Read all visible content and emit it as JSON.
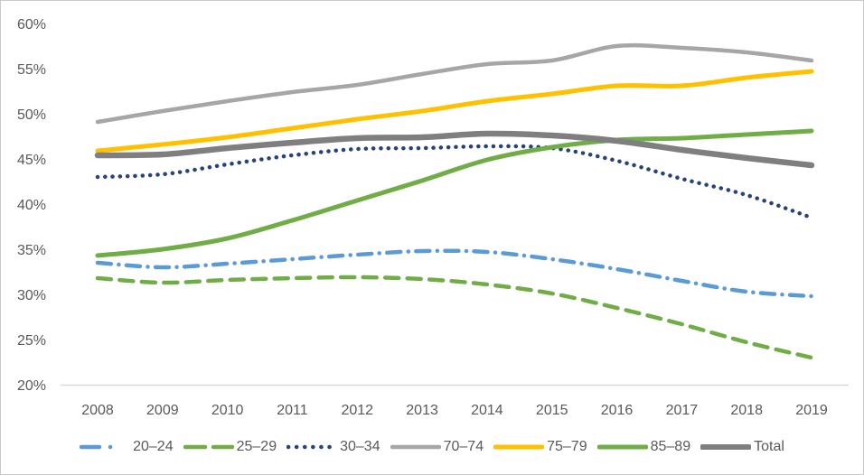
{
  "frame": {
    "background_color": "#FFFFFF",
    "border_color": "#C9C9C9",
    "axis_line_color": "#D9D9D9",
    "axis_text_color": "#595959"
  },
  "chart_data": {
    "type": "line",
    "title": "",
    "xlabel": "",
    "ylabel": "",
    "grid": false,
    "legend_position": "bottom",
    "smooth_lines": true,
    "ylim": [
      20,
      60
    ],
    "ytick_step": 5,
    "y_ticks": [
      "60%",
      "55%",
      "50%",
      "45%",
      "40%",
      "35%",
      "30%",
      "25%",
      "20%"
    ],
    "categories": [
      "2008",
      "2009",
      "2010",
      "2011",
      "2012",
      "2013",
      "2014",
      "2015",
      "2016",
      "2017",
      "2018",
      "2019"
    ],
    "series": [
      {
        "name": "20–24",
        "color": "#5B9BD5",
        "style": "dash-dot",
        "width": 4.5,
        "values": [
          33.5,
          33.0,
          33.4,
          33.9,
          34.4,
          34.8,
          34.7,
          33.9,
          32.8,
          31.5,
          30.3,
          29.8
        ]
      },
      {
        "name": "25–29",
        "color": "#70AD47",
        "style": "dashed",
        "width": 4.5,
        "values": [
          31.8,
          31.3,
          31.6,
          31.8,
          31.9,
          31.7,
          31.1,
          30.1,
          28.5,
          26.7,
          24.7,
          23.0
        ]
      },
      {
        "name": "30–34",
        "color": "#264478",
        "style": "dotted",
        "width": 4.5,
        "values": [
          43.0,
          43.3,
          44.4,
          45.4,
          46.1,
          46.2,
          46.4,
          46.2,
          44.8,
          42.8,
          41.0,
          38.5
        ]
      },
      {
        "name": "70–74",
        "color": "#A6A6A6",
        "style": "solid",
        "width": 4.5,
        "values": [
          49.1,
          50.3,
          51.4,
          52.4,
          53.2,
          54.4,
          55.5,
          55.9,
          57.5,
          57.3,
          56.8,
          55.9
        ]
      },
      {
        "name": "75–79",
        "color": "#FFC000",
        "style": "solid",
        "width": 5,
        "values": [
          45.9,
          46.6,
          47.4,
          48.4,
          49.4,
          50.3,
          51.4,
          52.2,
          53.1,
          53.1,
          54.0,
          54.7
        ]
      },
      {
        "name": "85–89",
        "color": "#70AD47",
        "style": "solid",
        "width": 5,
        "values": [
          34.3,
          35.0,
          36.2,
          38.2,
          40.4,
          42.6,
          44.9,
          46.3,
          47.1,
          47.3,
          47.7,
          48.1
        ]
      },
      {
        "name": "Total",
        "color": "#7F7F7F",
        "style": "solid",
        "width": 6.5,
        "values": [
          45.4,
          45.5,
          46.2,
          46.8,
          47.3,
          47.4,
          47.8,
          47.6,
          47.0,
          46.0,
          45.1,
          44.3
        ]
      }
    ]
  }
}
